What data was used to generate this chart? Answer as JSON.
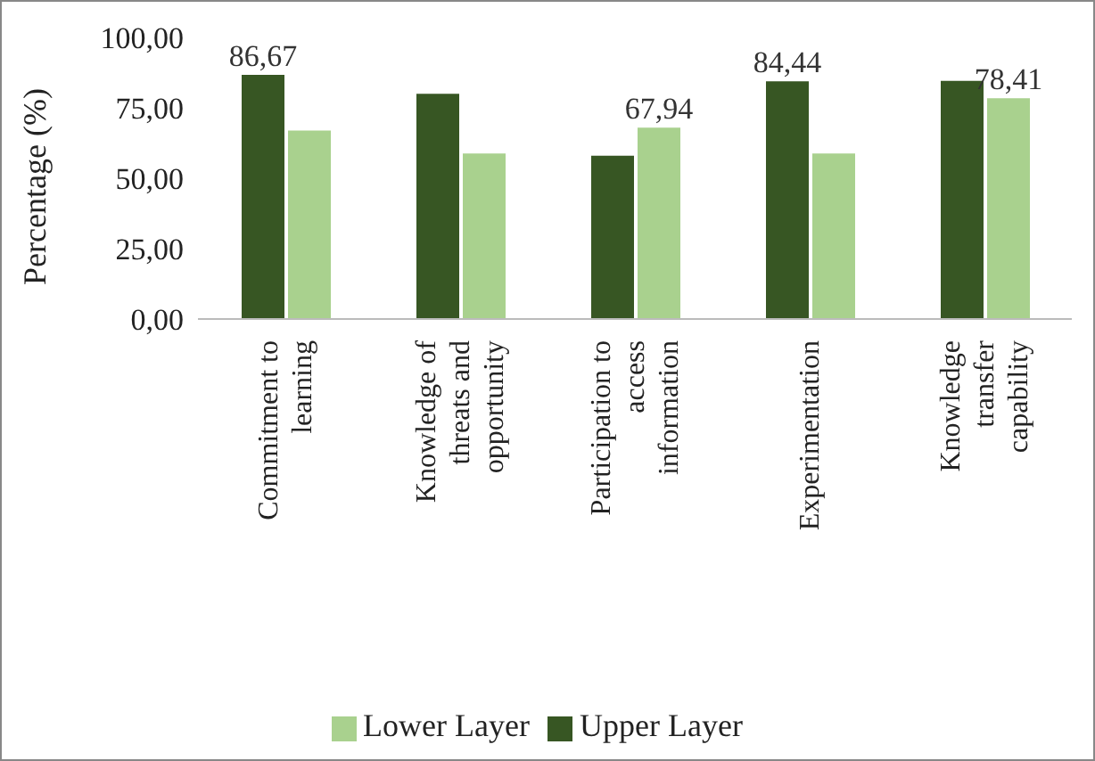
{
  "chart_data": {
    "type": "bar",
    "ylabel": "Percentage (%)",
    "categories": [
      "Commitment to learning",
      "Knowledge of threats and opportunity",
      "Participation to access information",
      "Experimentation",
      "Knowledge transfer capability"
    ],
    "series": [
      {
        "name": "Upper Layer",
        "color": "#375623",
        "values": [
          86.67,
          80,
          58,
          84.44,
          84.6
        ],
        "value_labels": [
          "86,67",
          null,
          null,
          "84,44",
          null
        ]
      },
      {
        "name": "Lower Layer",
        "color": "#a9d18e",
        "values": [
          66.9,
          58.8,
          67.94,
          58.8,
          78.41
        ],
        "value_labels": [
          null,
          null,
          "67,94",
          null,
          "78,41"
        ]
      }
    ],
    "ylim": [
      0,
      100
    ],
    "yticks": [
      {
        "value": 0,
        "label": "0,00"
      },
      {
        "value": 25,
        "label": "25,00"
      },
      {
        "value": 50,
        "label": "50,00"
      },
      {
        "value": 75,
        "label": "75,00"
      },
      {
        "value": 100,
        "label": "100,00"
      }
    ],
    "grid": false,
    "legend": "bottom"
  }
}
